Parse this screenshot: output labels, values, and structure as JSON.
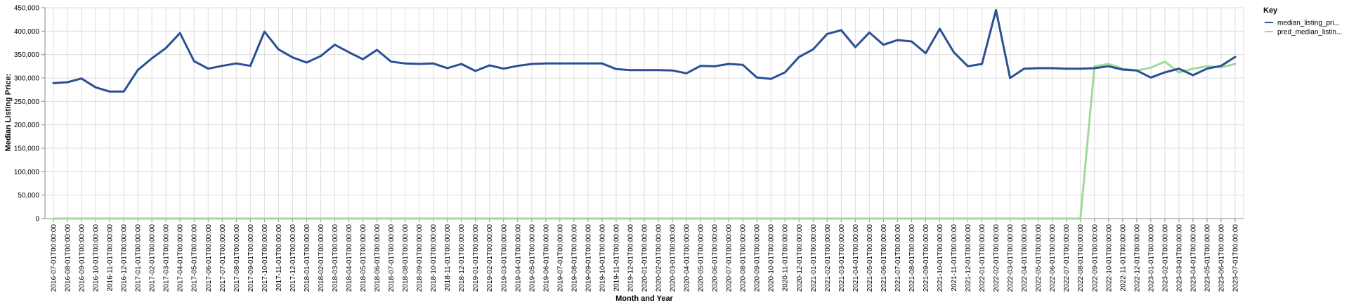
{
  "chart_data": {
    "type": "line",
    "xlabel": "Month and Year",
    "ylabel": "Median Listing Price:",
    "ylim": [
      0,
      450000
    ],
    "yticks": [
      0,
      50000,
      100000,
      150000,
      200000,
      250000,
      300000,
      350000,
      400000,
      450000
    ],
    "ytick_labels": [
      "0",
      "50,000",
      "100,000",
      "150,000",
      "200,000",
      "250,000",
      "300,000",
      "350,000",
      "400,000",
      "450,000"
    ],
    "grid": true,
    "legend": {
      "title": "Key",
      "placement": "top-right"
    },
    "x": [
      "2016-07-01T00:00:00",
      "2016-08-01T00:00:00",
      "2016-09-01T00:00:00",
      "2016-10-01T00:00:00",
      "2016-11-01T00:00:00",
      "2016-12-01T00:00:00",
      "2017-01-01T00:00:00",
      "2017-02-01T00:00:00",
      "2017-03-01T00:00:00",
      "2017-04-01T00:00:00",
      "2017-05-01T00:00:00",
      "2017-06-01T00:00:00",
      "2017-07-01T00:00:00",
      "2017-08-01T00:00:00",
      "2017-09-01T00:00:00",
      "2017-10-01T00:00:00",
      "2017-11-01T00:00:00",
      "2017-12-01T00:00:00",
      "2018-01-01T00:00:00",
      "2018-02-01T00:00:00",
      "2018-03-01T00:00:00",
      "2018-04-01T00:00:00",
      "2018-05-01T00:00:00",
      "2018-06-01T00:00:00",
      "2018-07-01T00:00:00",
      "2018-08-01T00:00:00",
      "2018-09-01T00:00:00",
      "2018-10-01T00:00:00",
      "2018-11-01T00:00:00",
      "2018-12-01T00:00:00",
      "2019-01-01T00:00:00",
      "2019-02-01T00:00:00",
      "2019-03-01T00:00:00",
      "2019-04-01T00:00:00",
      "2019-05-01T00:00:00",
      "2019-06-01T00:00:00",
      "2019-07-01T00:00:00",
      "2019-08-01T00:00:00",
      "2019-09-01T00:00:00",
      "2019-10-01T00:00:00",
      "2019-11-01T00:00:00",
      "2019-12-01T00:00:00",
      "2020-01-01T00:00:00",
      "2020-02-01T00:00:00",
      "2020-03-01T00:00:00",
      "2020-04-01T00:00:00",
      "2020-05-01T00:00:00",
      "2020-06-01T00:00:00",
      "2020-07-01T00:00:00",
      "2020-08-01T00:00:00",
      "2020-09-01T00:00:00",
      "2020-10-01T00:00:00",
      "2020-11-01T00:00:00",
      "2020-12-01T00:00:00",
      "2021-01-01T00:00:00",
      "2021-02-01T00:00:00",
      "2021-03-01T00:00:00",
      "2021-04-01T00:00:00",
      "2021-05-01T00:00:00",
      "2021-06-01T00:00:00",
      "2021-07-01T00:00:00",
      "2021-08-01T00:00:00",
      "2021-09-01T00:00:00",
      "2021-10-01T00:00:00",
      "2021-11-01T00:00:00",
      "2021-12-01T00:00:00",
      "2022-01-01T00:00:00",
      "2022-02-01T00:00:00",
      "2022-03-01T00:00:00",
      "2022-04-01T00:00:00",
      "2022-05-01T00:00:00",
      "2022-06-01T00:00:00",
      "2022-07-01T00:00:00",
      "2022-08-01T00:00:00",
      "2022-09-01T00:00:00",
      "2022-10-01T00:00:00",
      "2022-11-01T00:00:00",
      "2022-12-01T00:00:00",
      "2023-01-01T00:00:00",
      "2023-02-01T00:00:00",
      "2023-03-01T00:00:00",
      "2023-04-01T00:00:00",
      "2023-05-01T00:00:00",
      "2023-06-01T00:00:00",
      "2023-07-01T00:00:00"
    ],
    "series": [
      {
        "name": "median_listing_pri...",
        "color": "#2a4f94",
        "values": [
          289000,
          291000,
          299000,
          280000,
          271000,
          271000,
          317000,
          342000,
          364000,
          396000,
          336000,
          320000,
          326000,
          331000,
          326000,
          399000,
          361000,
          344000,
          333000,
          347000,
          371000,
          355000,
          340000,
          360000,
          335000,
          331000,
          330000,
          331000,
          321000,
          330000,
          315000,
          327000,
          320000,
          326000,
          330000,
          331000,
          331000,
          331000,
          331000,
          331000,
          319000,
          317000,
          317000,
          317000,
          316000,
          310000,
          326000,
          325000,
          330000,
          328000,
          301000,
          298000,
          312000,
          345000,
          361000,
          394000,
          402000,
          366000,
          397000,
          371000,
          381000,
          378000,
          353000,
          405000,
          355000,
          325000,
          330000,
          445000,
          300000,
          320000,
          321000,
          321000,
          320000,
          320000,
          321000,
          325000,
          318000,
          316000,
          301000,
          312000,
          320000,
          306000,
          320000,
          326000,
          345000
        ]
      },
      {
        "name": "pred_median_listin...",
        "color": "#a1d99b",
        "values": [
          0,
          0,
          0,
          0,
          0,
          0,
          0,
          0,
          0,
          0,
          0,
          0,
          0,
          0,
          0,
          0,
          0,
          0,
          0,
          0,
          0,
          0,
          0,
          0,
          0,
          0,
          0,
          0,
          0,
          0,
          0,
          0,
          0,
          0,
          0,
          0,
          0,
          0,
          0,
          0,
          0,
          0,
          0,
          0,
          0,
          0,
          0,
          0,
          0,
          0,
          0,
          0,
          0,
          0,
          0,
          0,
          0,
          0,
          0,
          0,
          0,
          0,
          0,
          0,
          0,
          0,
          0,
          0,
          0,
          0,
          0,
          0,
          0,
          0,
          325000,
          330000,
          320000,
          316000,
          322000,
          335000,
          312000,
          320000,
          325000,
          323000,
          330000
        ]
      }
    ]
  }
}
